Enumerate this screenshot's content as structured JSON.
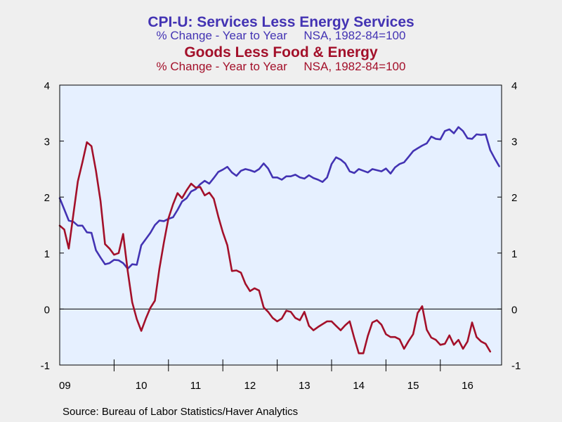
{
  "chart_data": {
    "type": "line",
    "titles": [
      {
        "title": "CPI-U: Services Less Energy Services",
        "subtitle": "% Change - Year to Year     NSA, 1982-84=100",
        "color": "#4333b3"
      },
      {
        "title": "Goods Less Food & Energy",
        "subtitle": "% Change - Year to Year     NSA, 1982-84=100",
        "color": "#a3102a"
      }
    ],
    "source": "Source:  Bureau of Labor Statistics/Haver Analytics",
    "x_labels": [
      "09",
      "10",
      "11",
      "12",
      "13",
      "14",
      "15",
      "16"
    ],
    "x_start": "2009-01",
    "frequency": "monthly",
    "ylim": [
      -1,
      4
    ],
    "yticks": [
      -1,
      0,
      1,
      2,
      3,
      4
    ],
    "zero_line": true,
    "plot_background": "#e6f0ff",
    "series": [
      {
        "color": "#4333b3",
        "values": [
          1.98,
          1.78,
          1.58,
          1.56,
          1.49,
          1.49,
          1.37,
          1.36,
          1.05,
          0.92,
          0.8,
          0.82,
          0.88,
          0.87,
          0.82,
          0.72,
          0.8,
          0.79,
          1.14,
          1.25,
          1.36,
          1.5,
          1.58,
          1.57,
          1.61,
          1.64,
          1.77,
          1.92,
          1.98,
          2.1,
          2.14,
          2.23,
          2.29,
          2.24,
          2.34,
          2.45,
          2.49,
          2.54,
          2.44,
          2.38,
          2.47,
          2.5,
          2.48,
          2.45,
          2.5,
          2.6,
          2.51,
          2.35,
          2.35,
          2.31,
          2.37,
          2.37,
          2.4,
          2.35,
          2.33,
          2.39,
          2.34,
          2.31,
          2.27,
          2.35,
          2.59,
          2.71,
          2.67,
          2.6,
          2.46,
          2.43,
          2.5,
          2.47,
          2.44,
          2.5,
          2.48,
          2.46,
          2.51,
          2.42,
          2.53,
          2.59,
          2.62,
          2.72,
          2.82,
          2.87,
          2.92,
          2.96,
          3.08,
          3.04,
          3.03,
          3.18,
          3.21,
          3.14,
          3.25,
          3.18,
          3.05,
          3.04,
          3.12,
          3.11,
          3.12,
          2.84,
          2.69,
          2.55
        ]
      },
      {
        "color": "#a3102a",
        "values": [
          1.49,
          1.42,
          1.08,
          1.68,
          2.28,
          2.62,
          2.98,
          2.91,
          2.47,
          1.93,
          1.16,
          1.08,
          0.97,
          1.0,
          1.34,
          0.68,
          0.12,
          -0.18,
          -0.39,
          -0.17,
          0.02,
          0.15,
          0.72,
          1.19,
          1.62,
          1.87,
          2.07,
          1.98,
          2.12,
          2.24,
          2.17,
          2.18,
          2.03,
          2.08,
          1.97,
          1.65,
          1.37,
          1.14,
          0.68,
          0.69,
          0.65,
          0.45,
          0.32,
          0.37,
          0.33,
          0.03,
          -0.05,
          -0.16,
          -0.22,
          -0.17,
          -0.03,
          -0.05,
          -0.16,
          -0.2,
          -0.05,
          -0.3,
          -0.38,
          -0.32,
          -0.27,
          -0.22,
          -0.22,
          -0.3,
          -0.38,
          -0.29,
          -0.22,
          -0.52,
          -0.79,
          -0.79,
          -0.48,
          -0.24,
          -0.2,
          -0.28,
          -0.45,
          -0.5,
          -0.5,
          -0.54,
          -0.71,
          -0.57,
          -0.45,
          -0.07,
          0.05,
          -0.37,
          -0.51,
          -0.55,
          -0.64,
          -0.62,
          -0.47,
          -0.64,
          -0.55,
          -0.71,
          -0.58,
          -0.24,
          -0.5,
          -0.58,
          -0.62,
          -0.76
        ]
      }
    ]
  }
}
